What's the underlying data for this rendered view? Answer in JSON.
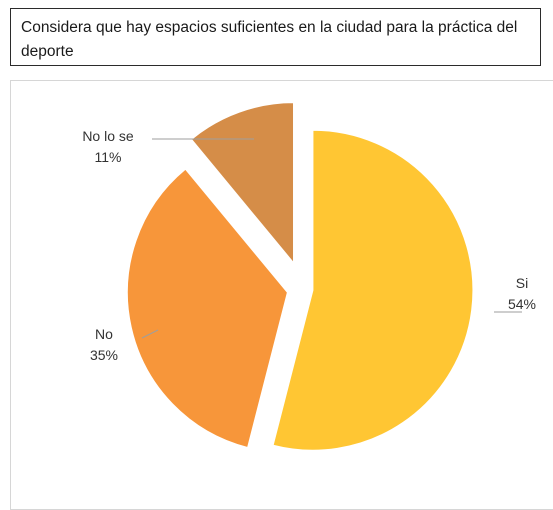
{
  "title": "Considera que hay espacios suficientes en la ciudad para la práctica del deporte",
  "chart_data": {
    "type": "pie",
    "title": "Considera que hay espacios suficientes en la ciudad para la práctica del deporte",
    "slices": [
      {
        "label": "Si",
        "value": 54,
        "value_label": "54%",
        "color": "#FFC633"
      },
      {
        "label": "No",
        "value": 35,
        "value_label": "35%",
        "color": "#F7963A"
      },
      {
        "label": "No lo se",
        "value": 11,
        "value_label": "11%",
        "color": "#D58D48"
      }
    ],
    "exploded": true,
    "start": "12 o'clock",
    "direction": "clockwise",
    "legend": "none",
    "data_labels": "outside with leader lines"
  }
}
